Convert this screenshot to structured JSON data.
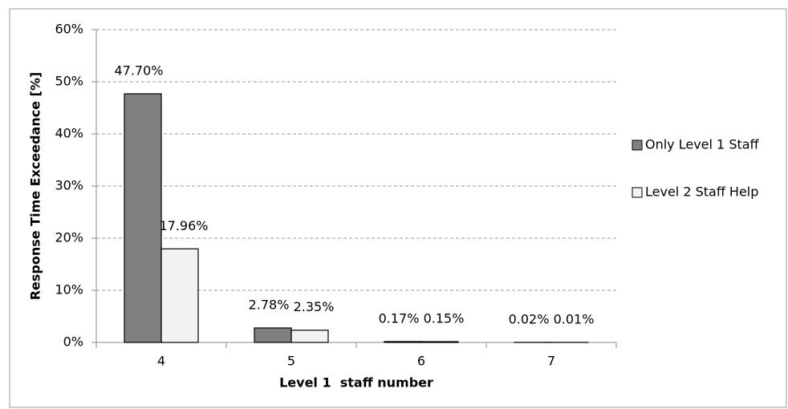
{
  "chart_data": {
    "type": "bar",
    "x_label": "Level 1  staff number",
    "y_label": "Response Time Exceedance [%]",
    "categories": [
      "4",
      "5",
      "6",
      "7"
    ],
    "series": [
      {
        "name": "Only Level 1 Staff",
        "color": "#808080",
        "values": [
          47.7,
          2.78,
          0.17,
          0.02
        ],
        "value_labels": [
          "47.70%",
          "2.78%",
          "0.17%",
          "0.02%"
        ]
      },
      {
        "name": "Level 2 Staff Help",
        "color": "#f2f2f2",
        "values": [
          17.96,
          2.35,
          0.15,
          0.01
        ],
        "value_labels": [
          "17.96%",
          "2.35%",
          "0.15%",
          "0.01%"
        ]
      }
    ],
    "ylim": [
      0,
      60
    ],
    "yticks": [
      {
        "value": 0,
        "label": "0%"
      },
      {
        "value": 10,
        "label": "10%"
      },
      {
        "value": 20,
        "label": "20%"
      },
      {
        "value": 30,
        "label": "30%"
      },
      {
        "value": 40,
        "label": "40%"
      },
      {
        "value": 50,
        "label": "50%"
      },
      {
        "value": 60,
        "label": "60%"
      }
    ],
    "grid": true,
    "legend": "right"
  }
}
